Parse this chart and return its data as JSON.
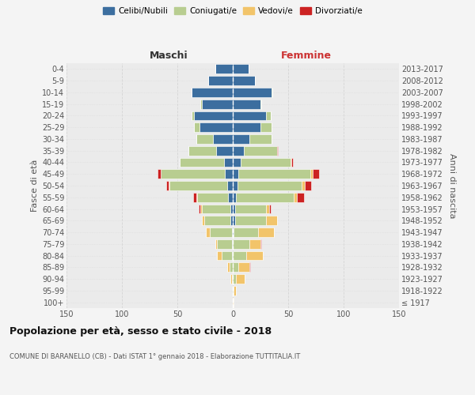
{
  "age_groups": [
    "100+",
    "95-99",
    "90-94",
    "85-89",
    "80-84",
    "75-79",
    "70-74",
    "65-69",
    "60-64",
    "55-59",
    "50-54",
    "45-49",
    "40-44",
    "35-39",
    "30-34",
    "25-29",
    "20-24",
    "15-19",
    "10-14",
    "5-9",
    "0-4"
  ],
  "birth_years": [
    "≤ 1917",
    "1918-1922",
    "1923-1927",
    "1928-1932",
    "1933-1937",
    "1938-1942",
    "1943-1947",
    "1948-1952",
    "1953-1957",
    "1958-1962",
    "1963-1967",
    "1968-1972",
    "1973-1977",
    "1978-1982",
    "1983-1987",
    "1988-1992",
    "1993-1997",
    "1998-2002",
    "2003-2007",
    "2008-2012",
    "2013-2017"
  ],
  "colors": {
    "celibi": "#3c6e9f",
    "coniugati": "#b8cd90",
    "vedovi": "#f2c46a",
    "divorziati": "#cc2222"
  },
  "maschi_celibi": [
    0,
    0,
    0,
    0,
    1,
    1,
    1,
    2,
    2,
    4,
    5,
    7,
    8,
    15,
    18,
    30,
    35,
    28,
    37,
    22,
    16
  ],
  "maschi_coniugati": [
    0,
    0,
    1,
    3,
    9,
    13,
    20,
    24,
    26,
    28,
    52,
    58,
    40,
    25,
    15,
    5,
    2,
    1,
    0,
    0,
    0
  ],
  "maschi_vedovi": [
    0,
    0,
    1,
    2,
    4,
    2,
    3,
    2,
    1,
    1,
    1,
    0,
    0,
    0,
    0,
    0,
    0,
    0,
    0,
    0,
    0
  ],
  "maschi_divorziati": [
    0,
    0,
    0,
    0,
    0,
    0,
    0,
    0,
    2,
    3,
    2,
    3,
    0,
    0,
    0,
    0,
    0,
    0,
    0,
    0,
    0
  ],
  "femmine_celibi": [
    0,
    0,
    0,
    0,
    0,
    0,
    1,
    2,
    2,
    3,
    4,
    5,
    7,
    10,
    15,
    25,
    30,
    25,
    35,
    20,
    14
  ],
  "femmine_coniugati": [
    0,
    1,
    3,
    5,
    12,
    15,
    22,
    28,
    28,
    52,
    58,
    65,
    45,
    30,
    20,
    10,
    4,
    1,
    1,
    0,
    0
  ],
  "femmine_vedovi": [
    1,
    2,
    8,
    10,
    15,
    10,
    14,
    10,
    3,
    3,
    3,
    2,
    1,
    0,
    0,
    0,
    0,
    0,
    0,
    0,
    0
  ],
  "femmine_divorziati": [
    0,
    0,
    0,
    1,
    0,
    1,
    0,
    0,
    1,
    6,
    6,
    6,
    1,
    1,
    0,
    0,
    0,
    0,
    0,
    0,
    0
  ],
  "title": "Popolazione per età, sesso e stato civile - 2018",
  "subtitle": "COMUNE DI BARANELLO (CB) - Dati ISTAT 1° gennaio 2018 - Elaborazione TUTTITALIA.IT",
  "ylabel_left": "Fasce di età",
  "ylabel_right": "Anni di nascita",
  "xlabel_left": "Maschi",
  "xlabel_right": "Femmine",
  "xlim": 150,
  "bg_color": "#f4f4f4",
  "plot_bg": "#ebebeb",
  "grid_color": "#d0d0d0"
}
